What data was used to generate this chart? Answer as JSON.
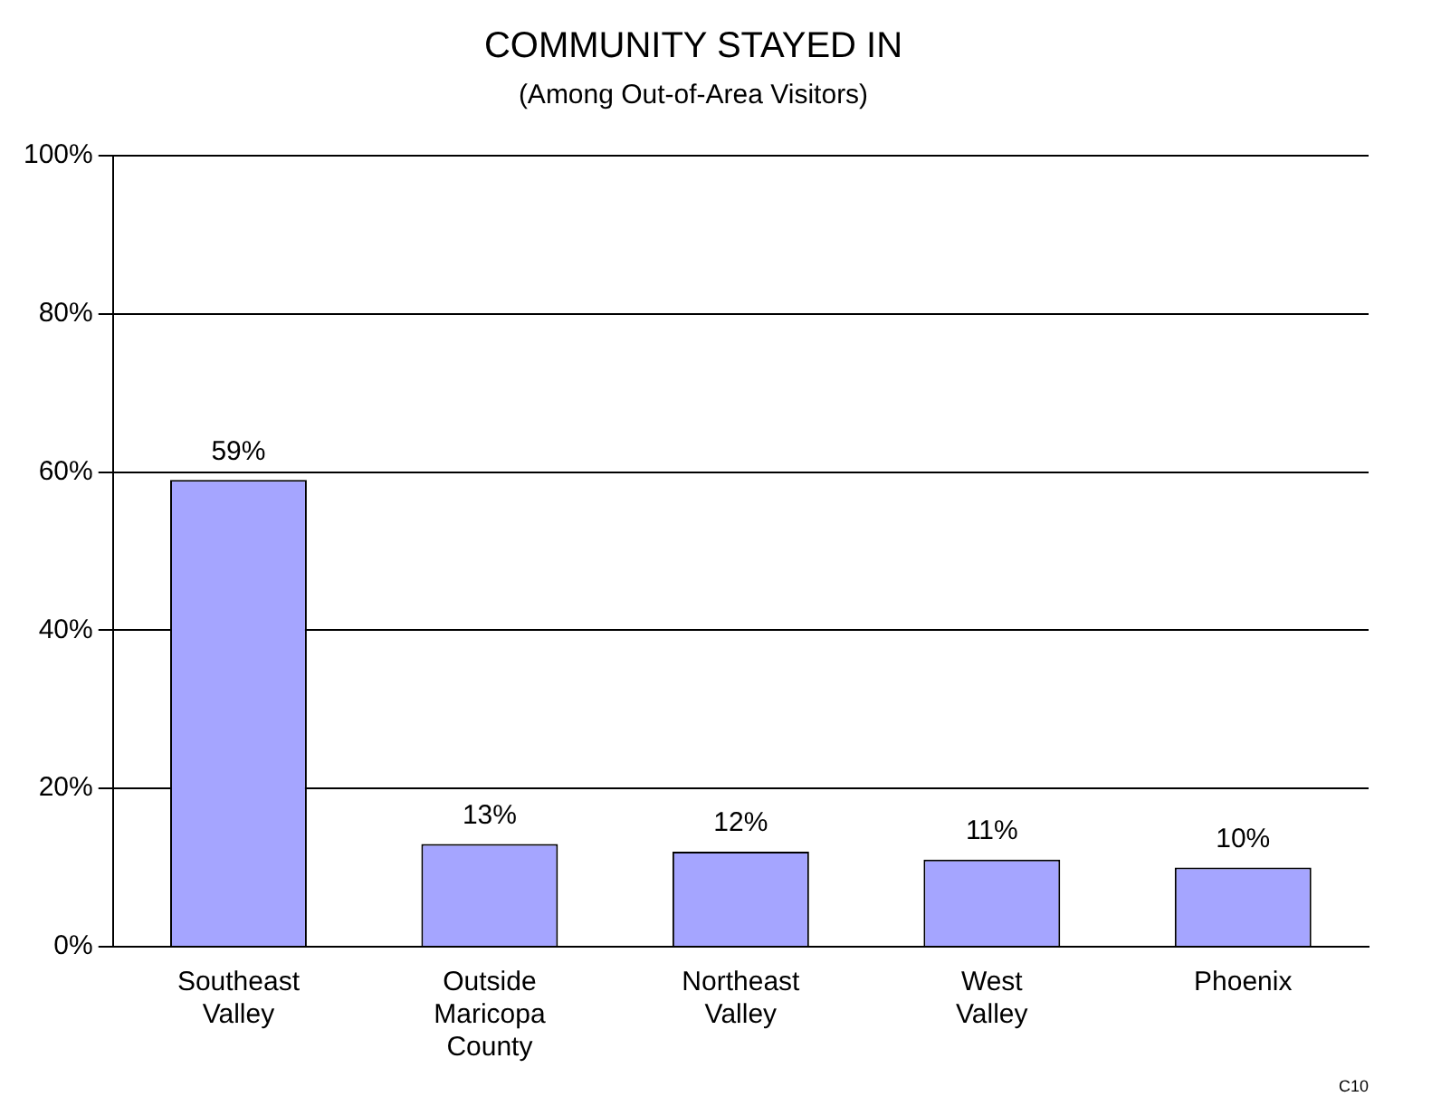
{
  "chart_data": {
    "type": "bar",
    "title": "COMMUNITY STAYED IN",
    "subtitle": "(Among Out-of-Area Visitors)",
    "categories": [
      "Southeast Valley",
      "Outside Maricopa County",
      "Northeast Valley",
      "West Valley",
      "Phoenix"
    ],
    "values": [
      59,
      13,
      12,
      11,
      10
    ],
    "value_labels": [
      "59%",
      "13%",
      "12%",
      "11%",
      "10%"
    ],
    "color": "#a5a5ff",
    "ylim": [
      0,
      100
    ],
    "yticks": [
      {
        "value": 0,
        "label": "0%"
      },
      {
        "value": 20,
        "label": "20%"
      },
      {
        "value": 40,
        "label": "40%"
      },
      {
        "value": 60,
        "label": "60%"
      },
      {
        "value": 80,
        "label": "80%"
      },
      {
        "value": 100,
        "label": "100%"
      }
    ],
    "grid": "y",
    "legend": false,
    "annotations": [
      "C10"
    ]
  }
}
